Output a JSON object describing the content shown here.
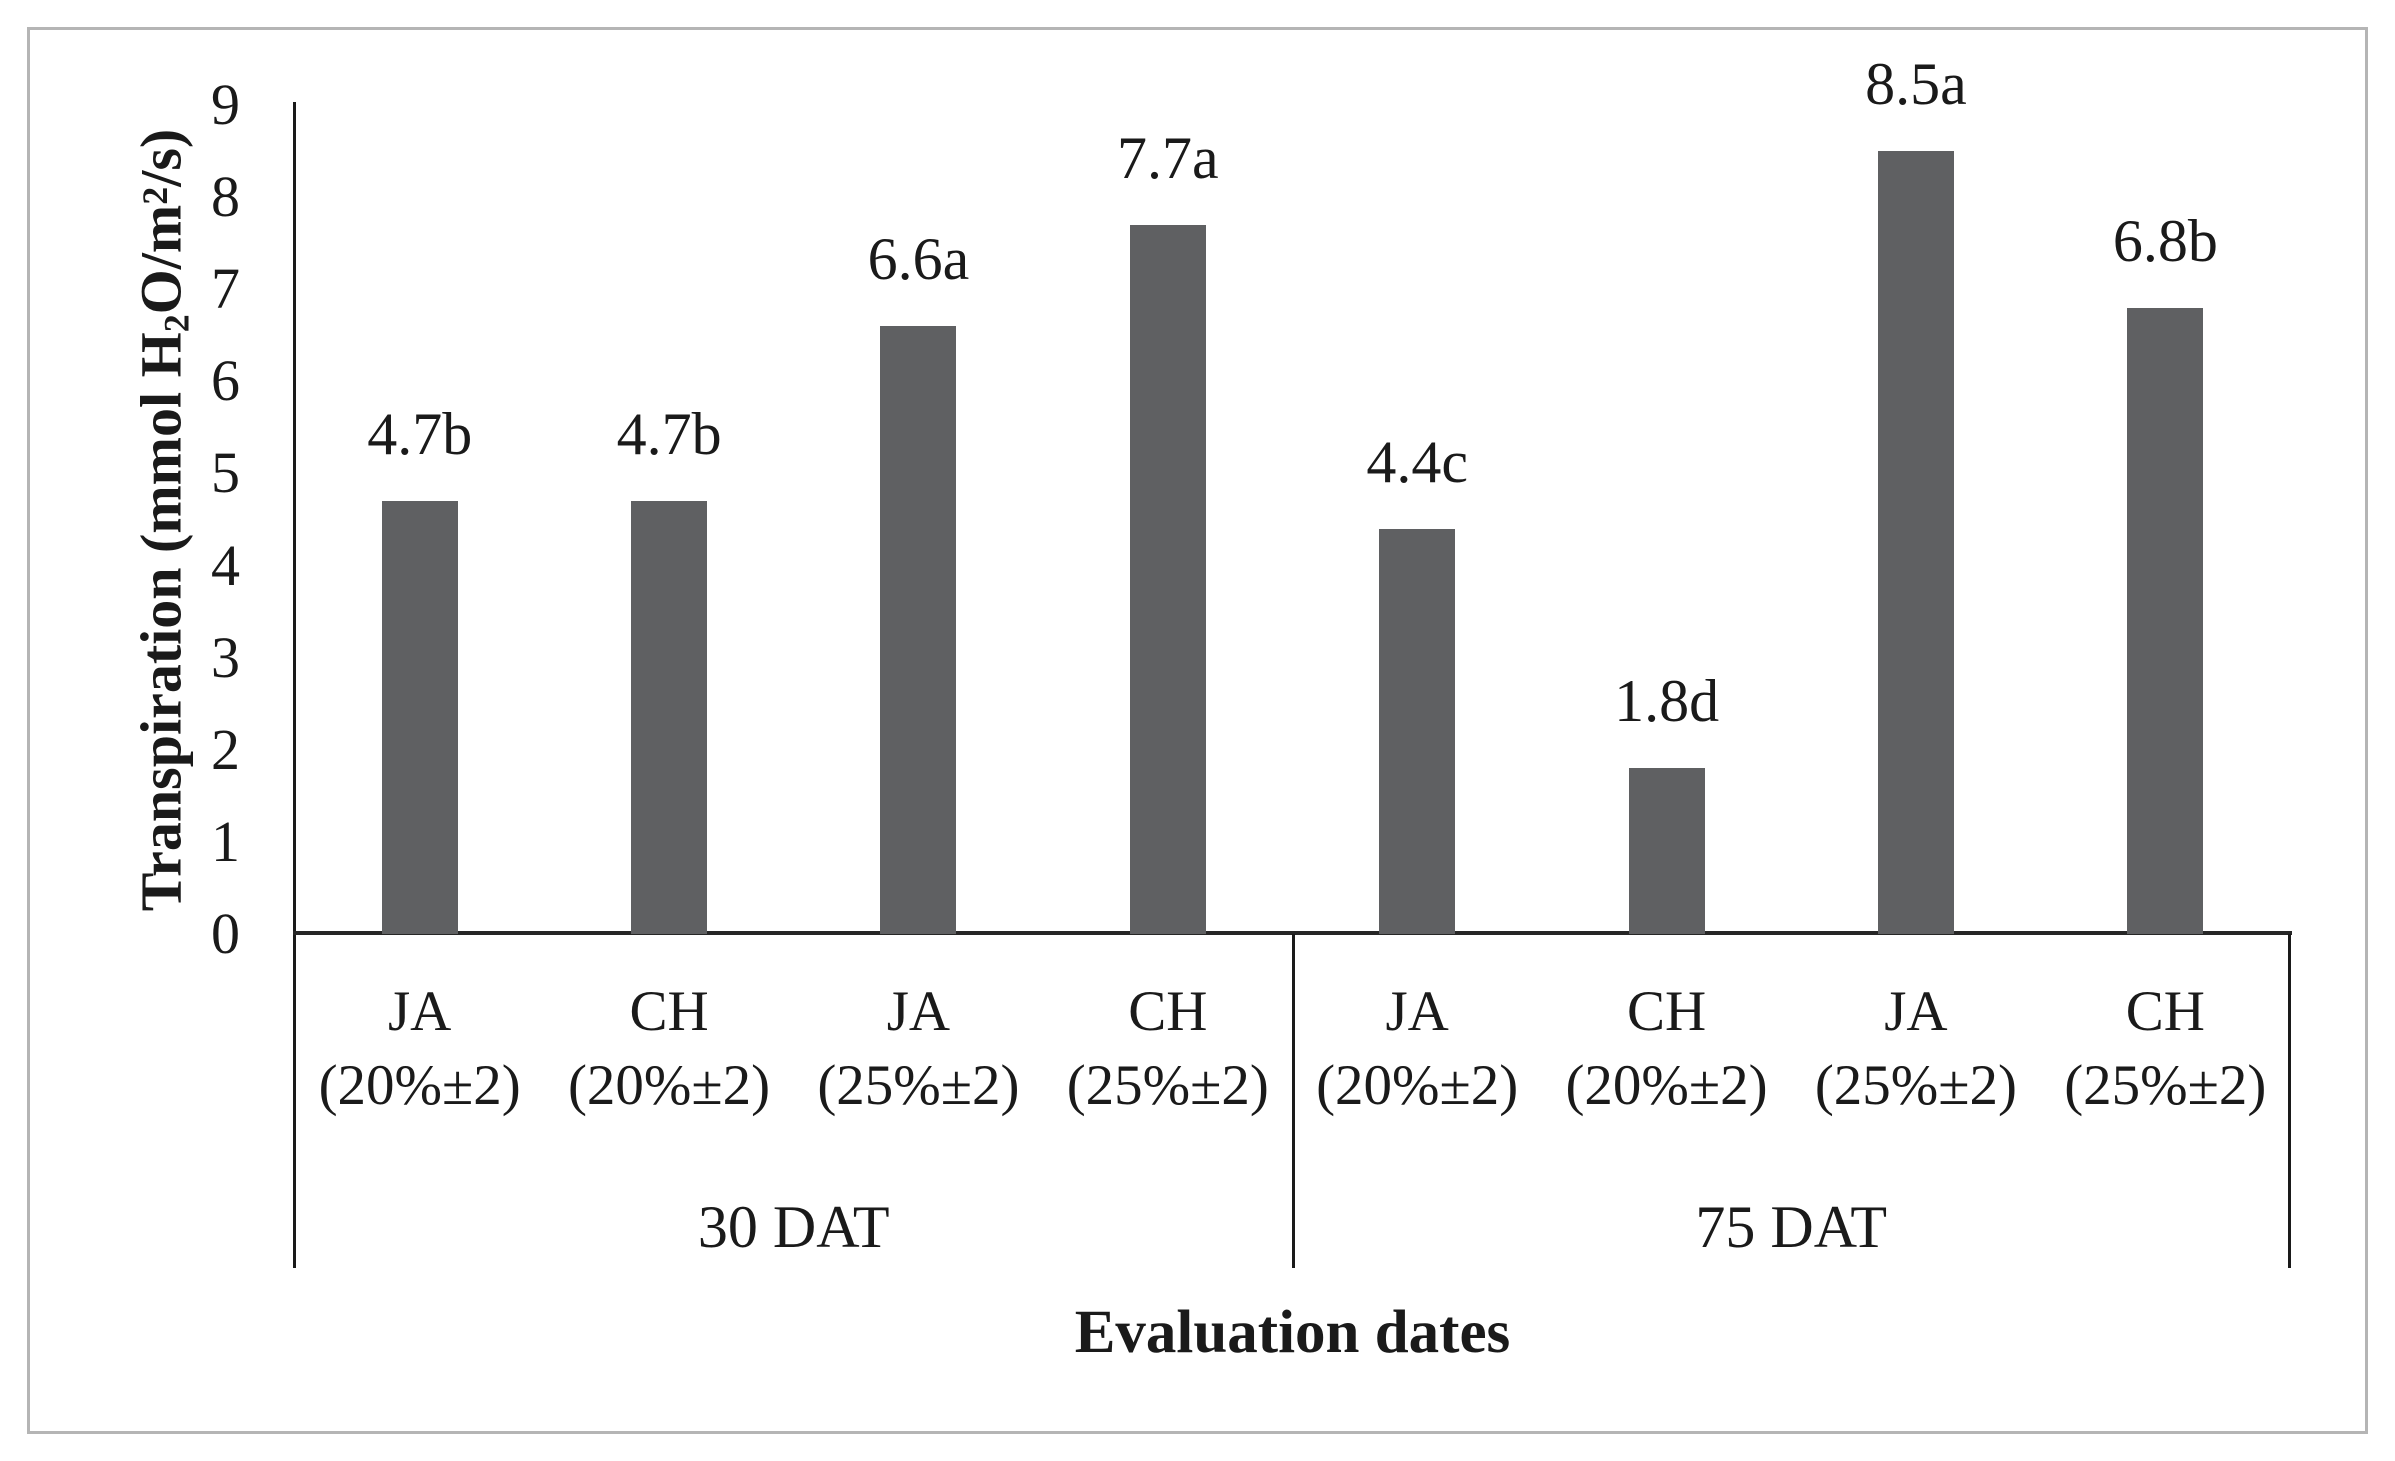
{
  "figure": {
    "background": "#ffffff",
    "border_color": "#b5b5b5"
  },
  "chart_data": {
    "type": "bar",
    "title": "",
    "xlabel": "Evaluation dates",
    "ylabel": "Transpiration (mmol H2O/m2/s)",
    "ylabel_parts": {
      "p1": "Transpiration (mmol H",
      "sub": "2",
      "p2": "O/m",
      "sup": "2",
      "p3": "/s)"
    },
    "ylim": [
      0,
      9
    ],
    "yticks": [
      "0",
      "1",
      "2",
      "3",
      "4",
      "5",
      "6",
      "7",
      "8",
      "9"
    ],
    "grid": false,
    "legend": false,
    "bar_color": "#5f6062",
    "axis_color": "#1a1a1a",
    "categories": [
      "JA (20%±2) 30 DAT",
      "CH (20%±2) 30 DAT",
      "JA (25%±2) 30 DAT",
      "CH (25%±2) 30 DAT",
      "JA (20%±2) 75 DAT",
      "CH (20%±2) 75 DAT",
      "JA (25%±2) 75 DAT",
      "CH (25%±2) 75 DAT"
    ],
    "groups": [
      {
        "label": "30 DAT",
        "bars": [
          {
            "treatment": "JA",
            "moisture": "(20%±2)",
            "value": 4.7,
            "annotation": "4.7b"
          },
          {
            "treatment": "CH",
            "moisture": "(20%±2)",
            "value": 4.7,
            "annotation": "4.7b"
          },
          {
            "treatment": "JA",
            "moisture": "(25%±2)",
            "value": 6.6,
            "annotation": "6.6a"
          },
          {
            "treatment": "CH",
            "moisture": "(25%±2)",
            "value": 7.7,
            "annotation": "7.7a"
          }
        ]
      },
      {
        "label": "75 DAT",
        "bars": [
          {
            "treatment": "JA",
            "moisture": "(20%±2)",
            "value": 4.4,
            "annotation": "4.4c"
          },
          {
            "treatment": "CH",
            "moisture": "(20%±2)",
            "value": 1.8,
            "annotation": "1.8d"
          },
          {
            "treatment": "JA",
            "moisture": "(25%±2)",
            "value": 8.5,
            "annotation": "8.5a"
          },
          {
            "treatment": "CH",
            "moisture": "(25%±2)",
            "value": 6.8,
            "annotation": "6.8b"
          }
        ]
      }
    ]
  }
}
